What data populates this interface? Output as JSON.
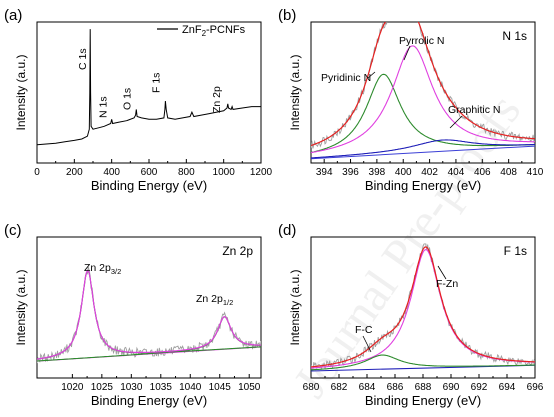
{
  "watermark": "Journal Pre-proofs",
  "chart_data": [
    {
      "panel": "(a)",
      "type": "line",
      "xlabel": "Binding Energy (eV)",
      "ylabel": "Intensity (a.u.)",
      "xlim": [
        0,
        1200
      ],
      "ylim": [
        0,
        100
      ],
      "xticks": [
        0,
        200,
        400,
        600,
        800,
        1000,
        1200
      ],
      "yticks_shown": false,
      "legend": {
        "label_main": "ZnF",
        "label_sub": "2",
        "label_tail": "-PCNFs",
        "position": "top-right"
      },
      "annotations": [
        {
          "text": "C 1s",
          "x": 285
        },
        {
          "text": "N 1s",
          "x": 400
        },
        {
          "text": "O 1s",
          "x": 532
        },
        {
          "text": "F 1s",
          "x": 688
        },
        {
          "text": "Zn 2p",
          "x": 1022
        }
      ],
      "series": [
        {
          "color": "#000000",
          "x": [
            0,
            50,
            100,
            150,
            200,
            240,
            270,
            280,
            283,
            285,
            287,
            290,
            300,
            330,
            360,
            395,
            400,
            405,
            440,
            480,
            520,
            528,
            532,
            536,
            560,
            600,
            640,
            680,
            685,
            688,
            692,
            700,
            740,
            780,
            820,
            830,
            840,
            880,
            920,
            960,
            1000,
            1018,
            1022,
            1026,
            1040,
            1045,
            1050,
            1100,
            1150,
            1200
          ],
          "y": [
            13,
            13.5,
            14,
            15,
            16,
            17,
            19,
            24,
            50,
            95,
            50,
            26,
            24,
            25,
            26,
            28,
            31,
            28,
            29,
            30,
            32,
            34,
            38,
            33,
            32,
            31,
            31,
            32,
            38,
            44,
            38,
            32,
            31,
            32,
            33,
            36,
            33,
            34,
            35,
            36,
            37,
            39,
            42,
            39,
            38,
            40,
            38,
            39,
            40,
            40
          ]
        }
      ]
    },
    {
      "panel": "(b)",
      "type": "line",
      "title": "N 1s",
      "xlabel": "Binding Energy (eV)",
      "ylabel": "Intensity (a.u.)",
      "xlim": [
        393,
        410
      ],
      "ylim": [
        0,
        100
      ],
      "xticks": [
        394,
        396,
        398,
        400,
        402,
        404,
        406,
        408,
        410
      ],
      "yticks_shown": false,
      "annotations": [
        {
          "text": "Pyrrolic N",
          "x": 401.0
        },
        {
          "text": "Pyridinic N",
          "x": 398.5
        },
        {
          "text": "Graphitic N",
          "x": 403.0
        }
      ],
      "background": {
        "color": "#3b3fd6",
        "x": [
          393,
          410
        ],
        "y": [
          3,
          12
        ]
      },
      "components": [
        {
          "name": "Pyridinic N",
          "color": "#2e8b2e",
          "center": 398.5,
          "height": 57,
          "width": 1.6
        },
        {
          "name": "Pyrrolic N",
          "color": "#e040e0",
          "center": 400.7,
          "height": 76,
          "width": 1.9
        },
        {
          "name": "Graphitic N",
          "color": "#1f1fb8",
          "center": 403.0,
          "height": 8,
          "width": 2.8
        }
      ],
      "envelope_color": "#e62020",
      "raw_color": "#9e9e9e"
    },
    {
      "panel": "(c)",
      "type": "line",
      "title": "Zn 2p",
      "xlabel": "Binding Energy (eV)",
      "ylabel": "Intensity (a.u.)",
      "xlim": [
        1014,
        1052
      ],
      "ylim": [
        0,
        100
      ],
      "xticks": [
        1020,
        1025,
        1030,
        1035,
        1040,
        1045,
        1050
      ],
      "yticks_shown": false,
      "annotations": [
        {
          "text": "Zn 2p",
          "sub": "3/2",
          "x": 1022.6
        },
        {
          "text": "Zn 2p",
          "sub": "1/2",
          "x": 1045.8
        }
      ],
      "background": {
        "color": "#e040e0",
        "x": [
          1014,
          1052
        ],
        "y": [
          12,
          22
        ]
      },
      "components": [
        {
          "name": "Zn 2p3/2",
          "color": "#2e8b2e",
          "center": 1022.6,
          "height": 62,
          "width": 1.3
        },
        {
          "name": "Zn 2p1/2",
          "color": "#2e8b2e",
          "center": 1045.8,
          "height": 23,
          "width": 1.4
        }
      ],
      "envelope_color": "#e040e0",
      "raw_color": "#9e9e9e"
    },
    {
      "panel": "(d)",
      "type": "line",
      "title": "F 1s",
      "xlabel": "Binding Energy (eV)",
      "ylabel": "Intensity (a.u.)",
      "xlim": [
        680,
        696
      ],
      "ylim": [
        0,
        100
      ],
      "xticks": [
        680,
        682,
        684,
        686,
        688,
        690,
        692,
        694,
        696
      ],
      "yticks_shown": false,
      "annotations": [
        {
          "text": "F-Zn",
          "x": 688.2
        },
        {
          "text": "F-C",
          "x": 685.1
        }
      ],
      "background": {
        "color": "#1f1fb8",
        "x": [
          680,
          696
        ],
        "y": [
          5,
          9
        ]
      },
      "components": [
        {
          "name": "F-Zn",
          "color": "#e040e0",
          "center": 688.2,
          "height": 84,
          "width": 1.3
        },
        {
          "name": "F-C",
          "color": "#2e8b2e",
          "center": 685.1,
          "height": 10,
          "width": 1.5
        }
      ],
      "envelope_color": "#e62020",
      "raw_color": "#9e9e9e"
    }
  ]
}
